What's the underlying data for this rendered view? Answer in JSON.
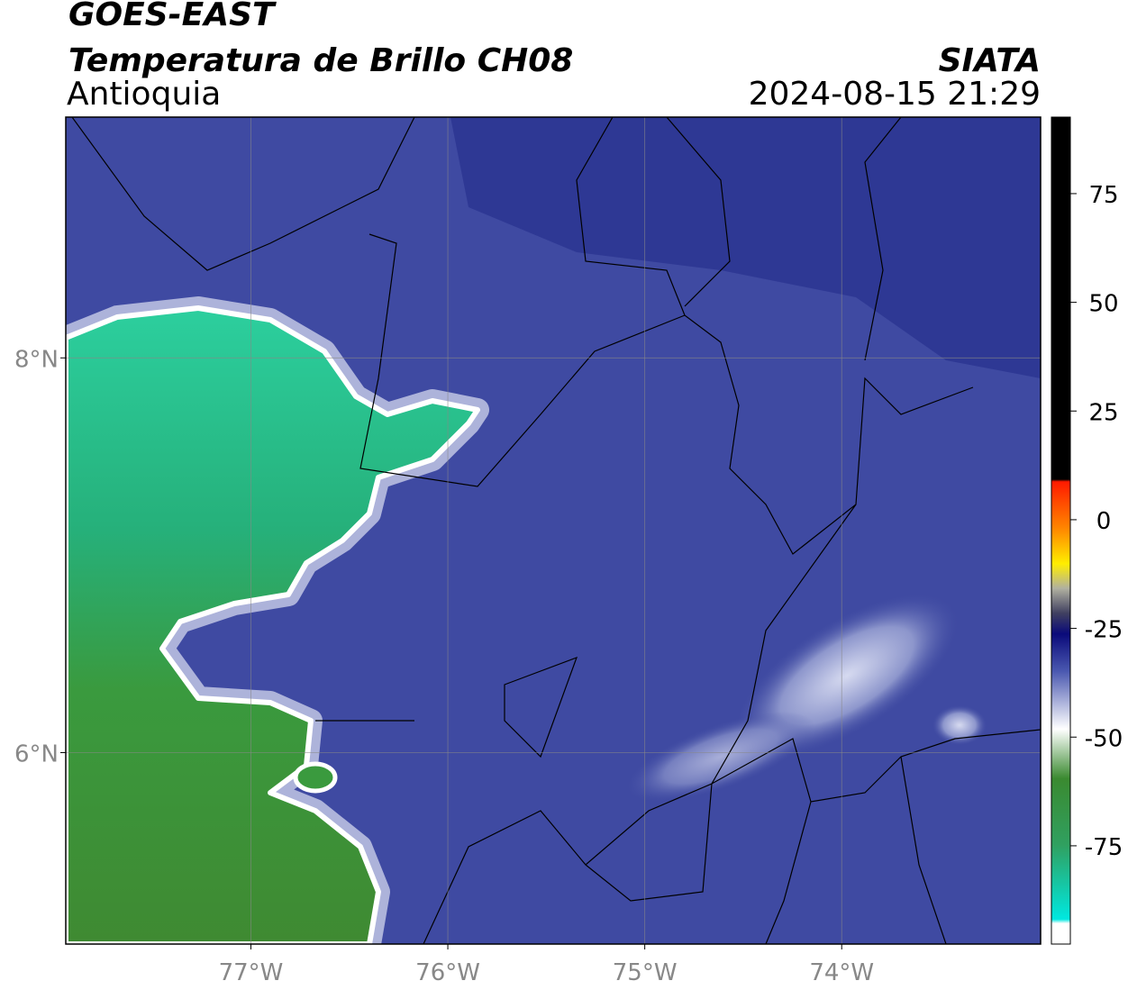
{
  "header": {
    "satellite": "GOES-EAST",
    "product": "Temperatura de Brillo CH08",
    "region": "Antioquia",
    "source": "SIATA",
    "datetime": "2024-08-15 21:29"
  },
  "map": {
    "xlim": [
      -77.94,
      -72.99
    ],
    "ylim": [
      5.03,
      9.22
    ],
    "xticks": [
      {
        "value": -77,
        "label": "77°W"
      },
      {
        "value": -76,
        "label": "76°W"
      },
      {
        "value": -75,
        "label": "75°W"
      },
      {
        "value": -74,
        "label": "74°W"
      }
    ],
    "yticks": [
      {
        "value": 8,
        "label": "8°N"
      },
      {
        "value": 6,
        "label": "6°N"
      }
    ],
    "grid": true
  },
  "colorbar": {
    "lim": [
      -97.6,
      92.6
    ],
    "ticks": [
      75,
      50,
      25,
      0,
      -25,
      -50,
      -75
    ]
  }
}
